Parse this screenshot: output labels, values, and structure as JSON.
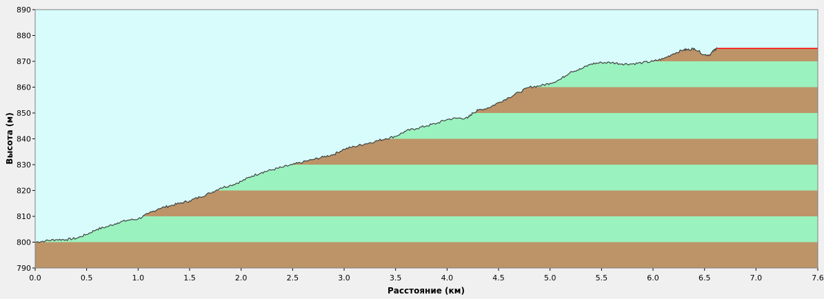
{
  "chart_data": {
    "type": "area",
    "xlabel": "Расстояние  (км)",
    "ylabel": "Высота (м)",
    "xlim": [
      0.0,
      7.6
    ],
    "ylim": [
      790,
      890
    ],
    "x_ticks": [
      "0.0",
      "0.5",
      "1.0",
      "1.5",
      "2.0",
      "2.5",
      "3.0",
      "3.5",
      "4.0",
      "4.5",
      "5.0",
      "5.5",
      "6.0",
      "6.5",
      "7.0",
      "7.6"
    ],
    "y_ticks": [
      "790",
      "800",
      "810",
      "820",
      "830",
      "840",
      "850",
      "860",
      "870",
      "880",
      "890"
    ],
    "band_colors": [
      "#bc9468",
      "#9af2be"
    ],
    "sky_color": "#d8fcfc",
    "profile_color": "#404040",
    "segment_color": "#ff0000",
    "series": [
      {
        "x": [
          0.0,
          0.1,
          0.2,
          0.3,
          0.4,
          0.5,
          0.6,
          0.7,
          0.8,
          0.9,
          1.0,
          1.1,
          1.2,
          1.3,
          1.4,
          1.5,
          1.6,
          1.7,
          1.8,
          1.9,
          2.0,
          2.1,
          2.2,
          2.3,
          2.4,
          2.5,
          2.6,
          2.7,
          2.8,
          2.9,
          3.0,
          3.1,
          3.2,
          3.3,
          3.4,
          3.5,
          3.6,
          3.7,
          3.8,
          3.9,
          4.0,
          4.1,
          4.2,
          4.25,
          4.3,
          4.4,
          4.5,
          4.6,
          4.7,
          4.8,
          4.9,
          5.0,
          5.1,
          5.2,
          5.3,
          5.4,
          5.5,
          5.6,
          5.7,
          5.8,
          5.9,
          6.0,
          6.1,
          6.2,
          6.3,
          6.35,
          6.4,
          6.5,
          6.55,
          6.6,
          6.62
        ],
        "y": [
          800,
          800.5,
          801,
          801,
          801.5,
          803,
          805,
          806,
          807.5,
          808.5,
          809,
          811,
          813,
          814,
          815,
          816,
          817.5,
          819,
          821,
          822,
          823.5,
          825.5,
          827,
          828,
          829,
          830,
          831,
          832,
          833,
          834,
          836,
          837,
          838,
          839,
          840,
          841,
          843,
          844,
          845,
          846,
          847.5,
          848,
          848,
          850,
          851,
          852,
          854,
          856,
          858,
          860,
          860.5,
          861.5,
          863,
          866,
          867,
          869,
          869.5,
          869.5,
          869,
          869,
          869.5,
          870,
          871,
          873,
          874.5,
          874.5,
          875,
          872.5,
          872.5,
          874.5,
          875
        ]
      }
    ],
    "segment": {
      "x": [
        6.62,
        7.6
      ],
      "y": [
        875,
        875
      ]
    }
  }
}
